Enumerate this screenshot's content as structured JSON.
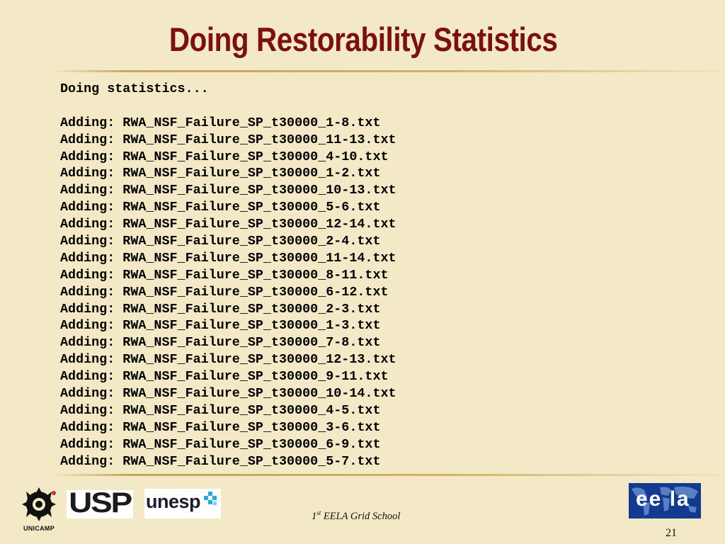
{
  "slide": {
    "title": "Doing Restorability Statistics",
    "page_number": "21"
  },
  "console": {
    "header": "Doing statistics...",
    "lines": [
      "Adding: RWA_NSF_Failure_SP_t30000_1-8.txt",
      "Adding: RWA_NSF_Failure_SP_t30000_11-13.txt",
      "Adding: RWA_NSF_Failure_SP_t30000_4-10.txt",
      "Adding: RWA_NSF_Failure_SP_t30000_1-2.txt",
      "Adding: RWA_NSF_Failure_SP_t30000_10-13.txt",
      "Adding: RWA_NSF_Failure_SP_t30000_5-6.txt",
      "Adding: RWA_NSF_Failure_SP_t30000_12-14.txt",
      "Adding: RWA_NSF_Failure_SP_t30000_2-4.txt",
      "Adding: RWA_NSF_Failure_SP_t30000_11-14.txt",
      "Adding: RWA_NSF_Failure_SP_t30000_8-11.txt",
      "Adding: RWA_NSF_Failure_SP_t30000_6-12.txt",
      "Adding: RWA_NSF_Failure_SP_t30000_2-3.txt",
      "Adding: RWA_NSF_Failure_SP_t30000_1-3.txt",
      "Adding: RWA_NSF_Failure_SP_t30000_7-8.txt",
      "Adding: RWA_NSF_Failure_SP_t30000_12-13.txt",
      "Adding: RWA_NSF_Failure_SP_t30000_9-11.txt",
      "Adding: RWA_NSF_Failure_SP_t30000_10-14.txt",
      "Adding: RWA_NSF_Failure_SP_t30000_4-5.txt",
      "Adding: RWA_NSF_Failure_SP_t30000_3-6.txt",
      "Adding: RWA_NSF_Failure_SP_t30000_6-9.txt",
      "Adding: RWA_NSF_Failure_SP_t30000_5-7.txt"
    ]
  },
  "footer": {
    "school_prefix": "1",
    "school_sup": "st",
    "school_rest": " EELA Grid School"
  },
  "logos": {
    "unicamp": "UNICAMP",
    "usp": "USP",
    "unesp": "unesp",
    "eela": "ee la"
  },
  "colors": {
    "background": "#f3e9c6",
    "title": "#7a1010",
    "rule": "#c9a45a",
    "eela_bg": "#123a8f"
  }
}
